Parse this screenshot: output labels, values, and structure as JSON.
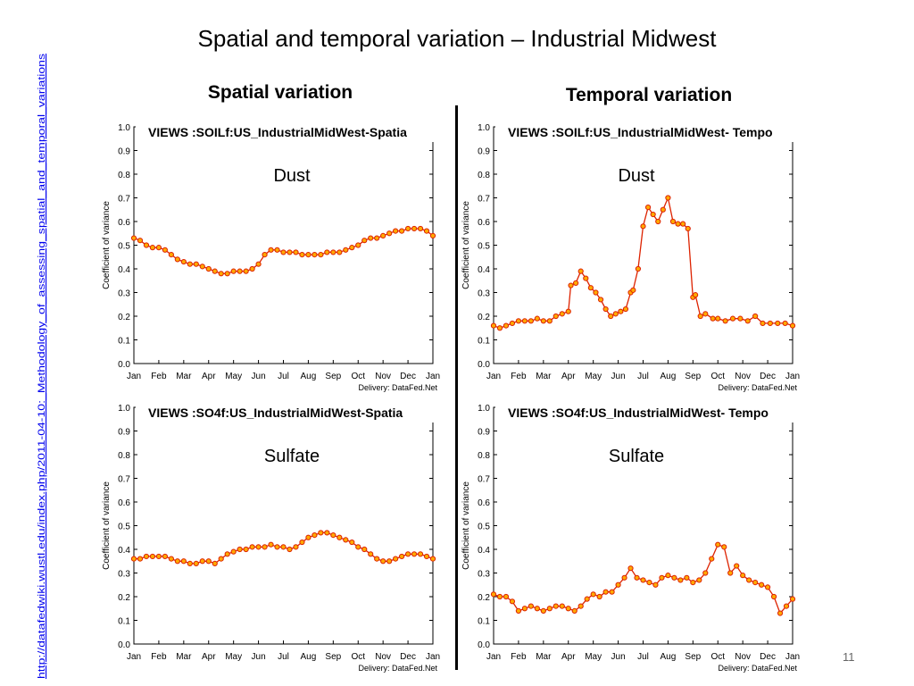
{
  "slide": {
    "title": "Spatial and temporal variation – Industrial Midwest",
    "spatial_heading": "Spatial variation",
    "temporal_heading": "Temporal variation",
    "side_link": "http://datafedwiki.wustl.edu/index.php/2011-04-10:_Methodology_of_assessing_spatial_and_temporal_variations",
    "page_number": "11"
  },
  "chart_data": [
    {
      "type": "line",
      "panel_title": "VIEWS :SOILf:US_IndustrialMidWest-Spatia",
      "label": "Dust",
      "ylabel": "Coefficient of variance",
      "credit": "Delivery: DataFed.Net",
      "ylim": [
        0,
        1.0
      ],
      "yticks": [
        "0.0",
        "0.1",
        "0.2",
        "0.3",
        "0.4",
        "0.5",
        "0.6",
        "0.7",
        "0.8",
        "0.9",
        "1.0"
      ],
      "xticks": [
        "Jan",
        "Feb",
        "Mar",
        "Apr",
        "May",
        "Jun",
        "Jul",
        "Aug",
        "Sep",
        "Oct",
        "Nov",
        "Dec",
        "Jan"
      ],
      "color": "#dd2200",
      "x": [
        0,
        0.25,
        0.5,
        0.75,
        1,
        1.25,
        1.5,
        1.75,
        2,
        2.25,
        2.5,
        2.75,
        3,
        3.25,
        3.5,
        3.75,
        4,
        4.25,
        4.5,
        4.75,
        5,
        5.25,
        5.5,
        5.75,
        6,
        6.25,
        6.5,
        6.75,
        7,
        7.25,
        7.5,
        7.75,
        8,
        8.25,
        8.5,
        8.75,
        9,
        9.25,
        9.5,
        9.75,
        10,
        10.25,
        10.5,
        10.75,
        11,
        11.25,
        11.5,
        11.75,
        12
      ],
      "y": [
        0.53,
        0.52,
        0.5,
        0.49,
        0.49,
        0.48,
        0.46,
        0.44,
        0.43,
        0.42,
        0.42,
        0.41,
        0.4,
        0.39,
        0.38,
        0.38,
        0.39,
        0.39,
        0.39,
        0.4,
        0.42,
        0.46,
        0.48,
        0.48,
        0.47,
        0.47,
        0.47,
        0.46,
        0.46,
        0.46,
        0.46,
        0.47,
        0.47,
        0.47,
        0.48,
        0.49,
        0.5,
        0.52,
        0.53,
        0.53,
        0.54,
        0.55,
        0.56,
        0.56,
        0.57,
        0.57,
        0.57,
        0.56,
        0.54
      ]
    },
    {
      "type": "line",
      "panel_title": "VIEWS :SOILf:US_IndustrialMidWest- Tempo",
      "label": "Dust",
      "ylabel": "Coefficient of variance",
      "credit": "Delivery: DataFed.Net",
      "ylim": [
        0,
        1.0
      ],
      "yticks": [
        "0.0",
        "0.1",
        "0.2",
        "0.3",
        "0.4",
        "0.5",
        "0.6",
        "0.7",
        "0.8",
        "0.9",
        "1.0"
      ],
      "xticks": [
        "Jan",
        "Feb",
        "Mar",
        "Apr",
        "May",
        "Jun",
        "Jul",
        "Aug",
        "Sep",
        "Oct",
        "Nov",
        "Dec",
        "Jan"
      ],
      "color": "#dd2200",
      "x": [
        0,
        0.25,
        0.5,
        0.75,
        1,
        1.25,
        1.5,
        1.75,
        2,
        2.25,
        2.5,
        2.75,
        3,
        3.1,
        3.3,
        3.5,
        3.7,
        3.9,
        4.1,
        4.3,
        4.5,
        4.7,
        4.9,
        5.1,
        5.3,
        5.5,
        5.6,
        5.8,
        6,
        6.2,
        6.4,
        6.6,
        6.8,
        7,
        7.2,
        7.4,
        7.6,
        7.8,
        8,
        8.1,
        8.3,
        8.5,
        8.8,
        9,
        9.3,
        9.6,
        9.9,
        10.2,
        10.5,
        10.8,
        11.1,
        11.4,
        11.7,
        12
      ],
      "y": [
        0.16,
        0.15,
        0.16,
        0.17,
        0.18,
        0.18,
        0.18,
        0.19,
        0.18,
        0.18,
        0.2,
        0.21,
        0.22,
        0.33,
        0.34,
        0.39,
        0.36,
        0.32,
        0.3,
        0.27,
        0.23,
        0.2,
        0.21,
        0.22,
        0.23,
        0.3,
        0.31,
        0.4,
        0.58,
        0.66,
        0.63,
        0.6,
        0.65,
        0.7,
        0.6,
        0.59,
        0.59,
        0.57,
        0.28,
        0.29,
        0.2,
        0.21,
        0.19,
        0.19,
        0.18,
        0.19,
        0.19,
        0.18,
        0.2,
        0.17,
        0.17,
        0.17,
        0.17,
        0.16
      ]
    },
    {
      "type": "line",
      "panel_title": "VIEWS :SO4f:US_IndustrialMidWest-Spatia",
      "label": "Sulfate",
      "ylabel": "Coefficient of variance",
      "credit": "Delivery: DataFed.Net",
      "ylim": [
        0,
        1.0
      ],
      "yticks": [
        "0.0",
        "0.1",
        "0.2",
        "0.3",
        "0.4",
        "0.5",
        "0.6",
        "0.7",
        "0.8",
        "0.9",
        "1.0"
      ],
      "xticks": [
        "Jan",
        "Feb",
        "Mar",
        "Apr",
        "May",
        "Jun",
        "Jul",
        "Aug",
        "Sep",
        "Oct",
        "Nov",
        "Dec",
        "Jan"
      ],
      "color": "#dd2200",
      "x": [
        0,
        0.25,
        0.5,
        0.75,
        1,
        1.25,
        1.5,
        1.75,
        2,
        2.25,
        2.5,
        2.75,
        3,
        3.25,
        3.5,
        3.75,
        4,
        4.25,
        4.5,
        4.75,
        5,
        5.25,
        5.5,
        5.75,
        6,
        6.25,
        6.5,
        6.75,
        7,
        7.25,
        7.5,
        7.75,
        8,
        8.25,
        8.5,
        8.75,
        9,
        9.25,
        9.5,
        9.75,
        10,
        10.25,
        10.5,
        10.75,
        11,
        11.25,
        11.5,
        11.75,
        12
      ],
      "y": [
        0.36,
        0.36,
        0.37,
        0.37,
        0.37,
        0.37,
        0.36,
        0.35,
        0.35,
        0.34,
        0.34,
        0.35,
        0.35,
        0.34,
        0.36,
        0.38,
        0.39,
        0.4,
        0.4,
        0.41,
        0.41,
        0.41,
        0.42,
        0.41,
        0.41,
        0.4,
        0.41,
        0.43,
        0.45,
        0.46,
        0.47,
        0.47,
        0.46,
        0.45,
        0.44,
        0.43,
        0.41,
        0.4,
        0.38,
        0.36,
        0.35,
        0.35,
        0.36,
        0.37,
        0.38,
        0.38,
        0.38,
        0.37,
        0.36
      ]
    },
    {
      "type": "line",
      "panel_title": "VIEWS :SO4f:US_IndustrialMidWest- Tempo",
      "label": "Sulfate",
      "ylabel": "Coefficient of variance",
      "credit": "Delivery: DataFed.Net",
      "ylim": [
        0,
        1.0
      ],
      "yticks": [
        "0.0",
        "0.1",
        "0.2",
        "0.3",
        "0.4",
        "0.5",
        "0.6",
        "0.7",
        "0.8",
        "0.9",
        "1.0"
      ],
      "xticks": [
        "Jan",
        "Feb",
        "Mar",
        "Apr",
        "May",
        "Jun",
        "Jul",
        "Aug",
        "Sep",
        "Oct",
        "Nov",
        "Dec",
        "Jan"
      ],
      "color": "#dd2200",
      "x": [
        0,
        0.25,
        0.5,
        0.75,
        1,
        1.25,
        1.5,
        1.75,
        2,
        2.25,
        2.5,
        2.75,
        3,
        3.25,
        3.5,
        3.75,
        4,
        4.25,
        4.5,
        4.75,
        5,
        5.25,
        5.5,
        5.75,
        6,
        6.25,
        6.5,
        6.75,
        7,
        7.25,
        7.5,
        7.75,
        8,
        8.25,
        8.5,
        8.75,
        9,
        9.25,
        9.5,
        9.75,
        10,
        10.25,
        10.5,
        10.75,
        11,
        11.25,
        11.5,
        11.75,
        12
      ],
      "y": [
        0.21,
        0.2,
        0.2,
        0.18,
        0.14,
        0.15,
        0.16,
        0.15,
        0.14,
        0.15,
        0.16,
        0.16,
        0.15,
        0.14,
        0.16,
        0.19,
        0.21,
        0.2,
        0.22,
        0.22,
        0.25,
        0.28,
        0.32,
        0.28,
        0.27,
        0.26,
        0.25,
        0.28,
        0.29,
        0.28,
        0.27,
        0.28,
        0.26,
        0.27,
        0.3,
        0.36,
        0.42,
        0.41,
        0.3,
        0.33,
        0.29,
        0.27,
        0.26,
        0.25,
        0.24,
        0.2,
        0.13,
        0.16,
        0.19
      ]
    }
  ]
}
